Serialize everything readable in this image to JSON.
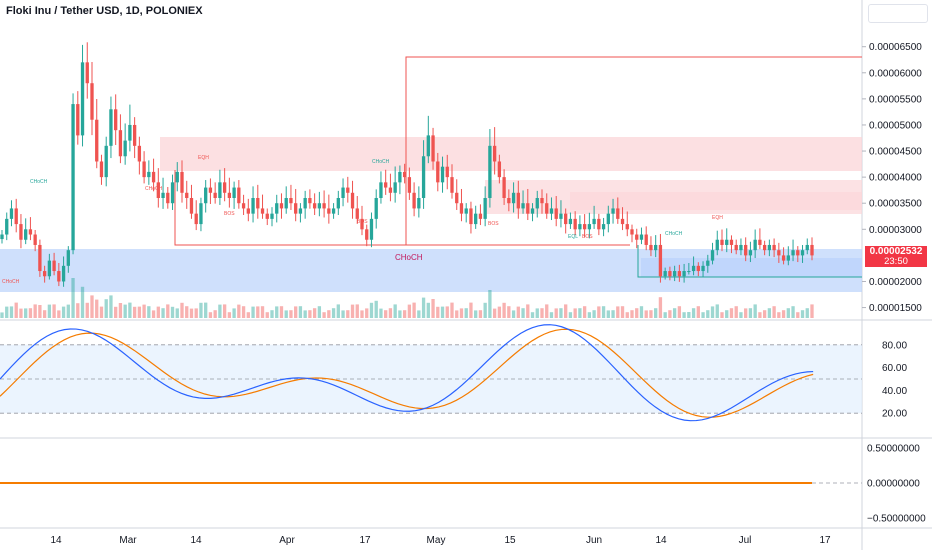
{
  "symbol_title": "Floki Inu / Tether USD, 1D, POLONIEX",
  "price_tag": {
    "price": "0.00002532",
    "countdown": "23:50",
    "color": "#f23645"
  },
  "colors": {
    "up": "#26a69a",
    "down": "#ef5350",
    "k_line": "#2962ff",
    "d_line": "#f57c00",
    "bull_zone": "#bbd3fb",
    "bear_zone": "#fbd5d8"
  },
  "smc_labels": {
    "choch_main": "CHoCH",
    "tags": [
      "CHoCH",
      "CHoCH",
      "CHoCH",
      "CHoCH",
      "CHoCH",
      "EQH",
      "EQH",
      "BOS",
      "BOS",
      "BOS",
      "EQL",
      "BOS"
    ]
  },
  "chart_data": [
    {
      "type": "candlestick",
      "x_tick_labels": [
        "14",
        "Mar",
        "14",
        "Apr",
        "17",
        "May",
        "15",
        "Jun",
        "14",
        "Jul",
        "17"
      ],
      "y_tick_labels": [
        "0.00006500",
        "0.00006000",
        "0.00005500",
        "0.00005000",
        "0.00004500",
        "0.00004000",
        "0.00003500",
        "0.00003000",
        "0.00002000",
        "0.00001500"
      ],
      "y_tick_values": [
        6.5e-05,
        6e-05,
        5.5e-05,
        5e-05,
        4.5e-05,
        4e-05,
        3.5e-05,
        3e-05,
        2e-05,
        1.5e-05
      ],
      "ylim": [
        1.3e-05,
        7.05e-05
      ],
      "x_days": [
        "Feb 14",
        "Mar 1",
        "Mar 14",
        "Apr 1",
        "Apr 17",
        "May 1",
        "May 15",
        "Jun 1",
        "Jun 14",
        "Jul 1",
        "Jul 17"
      ],
      "closes": [
        2.9,
        3.2,
        3.4,
        3.1,
        2.8,
        3.0,
        2.9,
        2.7,
        2.2,
        2.1,
        2.4,
        2.2,
        2.0,
        2.3,
        2.6,
        5.4,
        4.8,
        6.2,
        5.8,
        5.1,
        4.3,
        4.0,
        4.6,
        5.3,
        4.9,
        4.4,
        4.7,
        5.0,
        4.6,
        4.3,
        4.0,
        4.1,
        3.9,
        3.6,
        3.7,
        3.5,
        3.9,
        4.1,
        3.7,
        3.6,
        3.3,
        3.1,
        3.5,
        3.8,
        3.7,
        3.6,
        3.9,
        3.7,
        3.6,
        3.8,
        3.5,
        3.4,
        3.3,
        3.6,
        3.4,
        3.3,
        3.2,
        3.3,
        3.5,
        3.4,
        3.6,
        3.5,
        3.3,
        3.4,
        3.6,
        3.5,
        3.4,
        3.5,
        3.4,
        3.3,
        3.4,
        3.6,
        3.8,
        3.7,
        3.4,
        3.2,
        3.0,
        2.8,
        3.2,
        3.6,
        3.9,
        3.8,
        3.7,
        3.9,
        4.1,
        4.0,
        3.7,
        3.4,
        3.6,
        4.4,
        4.8,
        4.3,
        3.9,
        4.2,
        4.0,
        3.7,
        3.5,
        3.3,
        3.4,
        3.1,
        3.3,
        3.2,
        3.6,
        4.6,
        4.3,
        4.0,
        3.6,
        3.5,
        3.7,
        3.4,
        3.5,
        3.3,
        3.4,
        3.6,
        3.5,
        3.3,
        3.4,
        3.2,
        3.3,
        3.1,
        3.2,
        3.0,
        3.1,
        3.0,
        3.1,
        3.2,
        3.0,
        3.1,
        3.3,
        3.4,
        3.2,
        3.1,
        3.0,
        2.9,
        2.8,
        2.9,
        2.7,
        2.6,
        2.7,
        2.1,
        2.2,
        2.1,
        2.2,
        2.1,
        2.2,
        2.2,
        2.3,
        2.2,
        2.3,
        2.4,
        2.6,
        2.8,
        2.7,
        2.8,
        2.7,
        2.6,
        2.7,
        2.5,
        2.6,
        2.8,
        2.7,
        2.6,
        2.7,
        2.6,
        2.5,
        2.4,
        2.5,
        2.6,
        2.5,
        2.6,
        2.7,
        2.5
      ],
      "stoch_k_ylim": [
        0,
        100
      ],
      "stoch_tick_labels": [
        "80.00",
        "60.00",
        "40.00",
        "20.00"
      ],
      "stoch_tick_values": [
        80,
        60,
        40,
        20
      ],
      "osc_tick_labels": [
        "0.50000000",
        "0.00000000",
        "−0.50000000"
      ],
      "osc_tick_values": [
        0.5,
        0,
        -0.5
      ]
    }
  ]
}
